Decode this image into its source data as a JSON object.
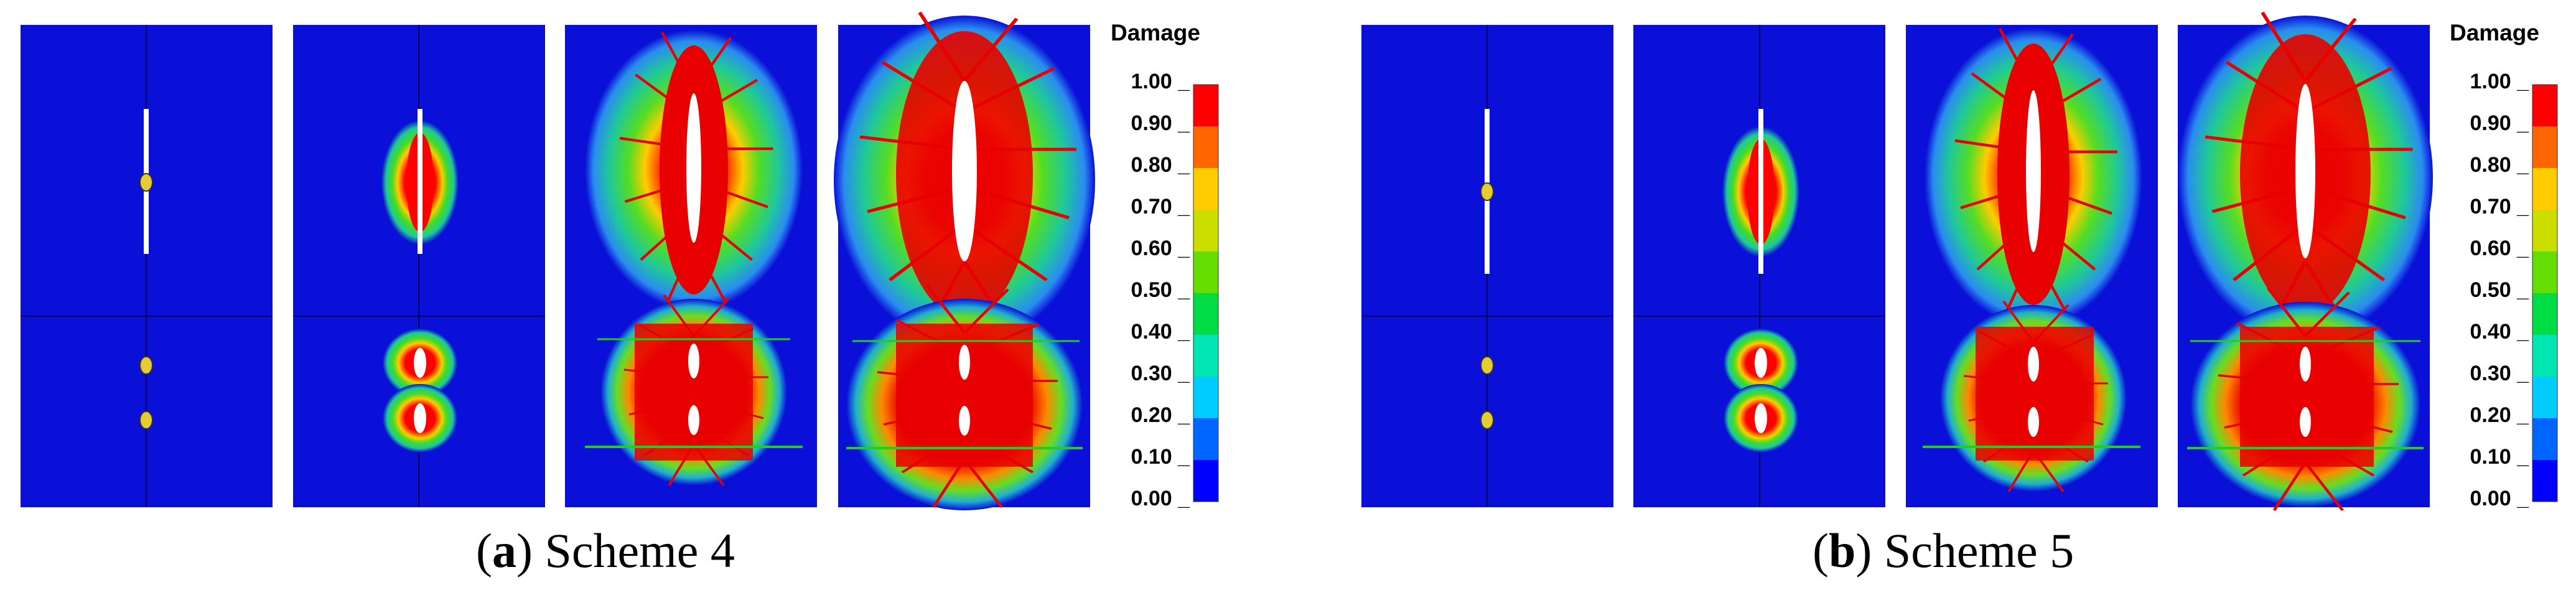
{
  "figures": [
    {
      "id": "a",
      "caption_letter": "a",
      "caption_text": "Scheme 4",
      "legend_title": "Damage"
    },
    {
      "id": "b",
      "caption_letter": "b",
      "caption_text": "Scheme 5",
      "legend_title": "Damage"
    }
  ],
  "legend": {
    "ticks": [
      "1.00",
      "0.90",
      "0.80",
      "0.70",
      "0.60",
      "0.50",
      "0.40",
      "0.30",
      "0.20",
      "0.10",
      "0.00"
    ],
    "colors": [
      "#0000ff",
      "#0066ff",
      "#00ccff",
      "#00e6b3",
      "#00dd44",
      "#66dd00",
      "#ccdd00",
      "#ffcc00",
      "#ff6600",
      "#ff0000"
    ]
  },
  "palette": {
    "background_blue": "#0a10d8",
    "crack_white": "#ffffff",
    "red": "#e60000",
    "orange": "#ff6a00",
    "yellow": "#ffd400",
    "green": "#22cc22",
    "teal": "#1fc89a",
    "light_blue": "#1e90ff"
  }
}
